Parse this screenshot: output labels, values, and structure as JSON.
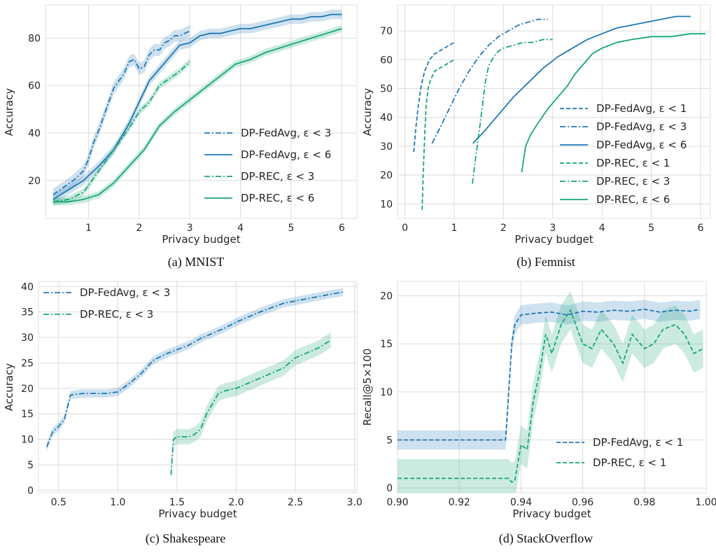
{
  "colors": {
    "blue": "#1f77b4",
    "green": "#17a673",
    "grid": "#dcdcdc",
    "spine": "#e2e2e2"
  },
  "chart_data": [
    {
      "type": "line",
      "caption": "(a) MNIST",
      "xlabel": "Privacy budget",
      "ylabel": "Accuracy",
      "xlim": [
        0.15,
        6.3
      ],
      "ylim": [
        4,
        94
      ],
      "xticks": [
        1,
        2,
        3,
        4,
        5,
        6
      ],
      "xtick_labels": [
        "1",
        "2",
        "3",
        "4",
        "5",
        "6"
      ],
      "yticks": [
        20,
        40,
        60,
        80
      ],
      "ytick_labels": [
        "20",
        "40",
        "60",
        "80"
      ],
      "grid": true,
      "legend_position": "lower-right",
      "series": [
        {
          "name": "DP-FedAvg, ε < 3",
          "color": "blue",
          "style": "dashdot",
          "band": 2.5,
          "x": [
            0.3,
            0.5,
            0.7,
            0.9,
            1.0,
            1.1,
            1.2,
            1.3,
            1.4,
            1.5,
            1.6,
            1.7,
            1.8,
            1.9,
            2.0,
            2.1,
            2.2,
            2.3,
            2.4,
            2.5,
            2.6,
            2.7,
            2.8,
            2.9,
            3.0
          ],
          "y": [
            14,
            17,
            20,
            24,
            29,
            36,
            41,
            47,
            53,
            59,
            62,
            65,
            70,
            71,
            67,
            68,
            73,
            75,
            75,
            78,
            79,
            81,
            81,
            82,
            83
          ]
        },
        {
          "name": "DP-FedAvg, ε < 6",
          "color": "blue",
          "style": "solid",
          "band": 2,
          "x": [
            0.3,
            0.6,
            0.9,
            1.2,
            1.5,
            1.8,
            2.0,
            2.2,
            2.4,
            2.6,
            2.8,
            3.0,
            3.2,
            3.4,
            3.6,
            3.8,
            4.0,
            4.2,
            4.4,
            4.6,
            4.8,
            5.0,
            5.2,
            5.4,
            5.6,
            5.8,
            6.0
          ],
          "y": [
            12,
            16,
            20,
            26,
            33,
            44,
            53,
            62,
            67,
            72,
            77,
            78,
            81,
            82,
            82,
            83,
            84,
            84,
            85,
            86,
            87,
            88,
            88,
            89,
            89,
            90,
            90
          ]
        },
        {
          "name": "DP-REC, ε < 3",
          "color": "green",
          "style": "dashdot",
          "band": 1.5,
          "x": [
            0.3,
            0.6,
            0.9,
            1.2,
            1.5,
            1.8,
            2.0,
            2.2,
            2.4,
            2.6,
            2.8,
            3.0
          ],
          "y": [
            11,
            12,
            15,
            24,
            33,
            42,
            49,
            53,
            60,
            63,
            66,
            70
          ]
        },
        {
          "name": "DP-REC, ε < 6",
          "color": "green",
          "style": "solid",
          "band": 1.5,
          "x": [
            0.3,
            0.6,
            0.9,
            1.2,
            1.5,
            1.8,
            2.1,
            2.4,
            2.7,
            3.0,
            3.3,
            3.6,
            3.9,
            4.2,
            4.5,
            4.8,
            5.1,
            5.4,
            5.7,
            6.0
          ],
          "y": [
            11,
            11,
            12,
            14,
            19,
            26,
            33,
            43,
            49,
            54,
            59,
            64,
            69,
            71,
            74,
            76,
            78,
            80,
            82,
            84
          ]
        }
      ]
    },
    {
      "type": "line",
      "caption": "(b) Femnist",
      "xlabel": "Privacy budget",
      "ylabel": "Accuracy",
      "xlim": [
        -0.15,
        6.2
      ],
      "ylim": [
        5,
        79
      ],
      "xticks": [
        0,
        1,
        2,
        3,
        4,
        5,
        6
      ],
      "xtick_labels": [
        "0",
        "1",
        "2",
        "3",
        "4",
        "5",
        "6"
      ],
      "yticks": [
        10,
        20,
        30,
        40,
        50,
        60,
        70
      ],
      "ytick_labels": [
        "10",
        "20",
        "30",
        "40",
        "50",
        "60",
        "70"
      ],
      "grid": true,
      "legend_position": "lower-right",
      "series": [
        {
          "name": "DP-FedAvg, ε < 1",
          "color": "blue",
          "style": "dashed",
          "band": 0,
          "x": [
            0.18,
            0.22,
            0.27,
            0.33,
            0.4,
            0.5,
            0.6,
            0.7,
            0.8,
            0.9,
            1.0
          ],
          "y": [
            28,
            36,
            44,
            51,
            56,
            60,
            62,
            63,
            64,
            65,
            66
          ]
        },
        {
          "name": "DP-FedAvg, ε < 3",
          "color": "blue",
          "style": "dashdot",
          "band": 0,
          "x": [
            0.55,
            0.7,
            0.9,
            1.1,
            1.3,
            1.5,
            1.7,
            1.9,
            2.1,
            2.3,
            2.5,
            2.7,
            2.9
          ],
          "y": [
            31,
            36,
            43,
            50,
            56,
            61,
            65,
            68,
            70,
            72,
            73,
            74,
            74
          ]
        },
        {
          "name": "DP-FedAvg, ε < 6",
          "color": "blue",
          "style": "solid",
          "band": 0,
          "x": [
            1.38,
            1.6,
            1.8,
            2.0,
            2.2,
            2.5,
            2.8,
            3.1,
            3.4,
            3.7,
            4.0,
            4.3,
            4.6,
            4.9,
            5.2,
            5.5,
            5.8
          ],
          "y": [
            31,
            35,
            39,
            43,
            47,
            52,
            57,
            61,
            64,
            67,
            69,
            71,
            72,
            73,
            74,
            75,
            75
          ]
        },
        {
          "name": "DP-REC, ε < 1",
          "color": "green",
          "style": "dashed",
          "band": 0,
          "x": [
            0.35,
            0.37,
            0.4,
            0.43,
            0.47,
            0.52,
            0.6,
            0.7,
            0.8,
            0.9,
            1.0
          ],
          "y": [
            8,
            20,
            33,
            44,
            50,
            53,
            56,
            57,
            58,
            59,
            60
          ]
        },
        {
          "name": "DP-REC, ε < 3",
          "color": "green",
          "style": "dashdot",
          "band": 0,
          "x": [
            1.37,
            1.45,
            1.52,
            1.58,
            1.63,
            1.7,
            1.8,
            1.9,
            2.0,
            2.2,
            2.4,
            2.6,
            2.8,
            3.0
          ],
          "y": [
            17,
            28,
            37,
            45,
            52,
            58,
            61,
            63,
            64,
            65,
            66,
            66,
            67,
            67
          ]
        },
        {
          "name": "DP-REC, ε < 6",
          "color": "green",
          "style": "solid",
          "band": 0,
          "x": [
            2.37,
            2.45,
            2.55,
            2.7,
            2.9,
            3.1,
            3.3,
            3.45,
            3.6,
            3.8,
            4.0,
            4.3,
            4.6,
            5.0,
            5.4,
            5.8,
            6.1
          ],
          "y": [
            21,
            30,
            34,
            38,
            43,
            47,
            51,
            55,
            58,
            62,
            64,
            66,
            67,
            68,
            68,
            69,
            69
          ]
        }
      ]
    },
    {
      "type": "line",
      "caption": "(c) Shakespeare",
      "xlabel": "Privacy budget",
      "ylabel": "Accuracy",
      "xlim": [
        0.33,
        3.02
      ],
      "ylim": [
        -0.5,
        41
      ],
      "xticks": [
        0.5,
        1.0,
        1.5,
        2.0,
        2.5,
        3.0
      ],
      "xtick_labels": [
        "0.5",
        "1.0",
        "1.5",
        "2.0",
        "2.5",
        "3.0"
      ],
      "yticks": [
        0,
        5,
        10,
        15,
        20,
        25,
        30,
        35,
        40
      ],
      "ytick_labels": [
        "0",
        "5",
        "10",
        "15",
        "20",
        "25",
        "30",
        "35",
        "40"
      ],
      "grid": true,
      "legend_position": "upper-left",
      "series": [
        {
          "name": "DP-FedAvg, ε < 3",
          "color": "blue",
          "style": "dashdot",
          "band": 0.8,
          "x": [
            0.4,
            0.45,
            0.5,
            0.55,
            0.6,
            0.7,
            0.8,
            0.9,
            1.0,
            1.1,
            1.2,
            1.3,
            1.4,
            1.5,
            1.6,
            1.7,
            1.8,
            1.9,
            2.0,
            2.2,
            2.4,
            2.6,
            2.8,
            2.9
          ],
          "y": [
            8.5,
            11.5,
            12.5,
            14,
            18.7,
            19,
            19,
            19,
            19.3,
            21,
            23,
            25.5,
            26.7,
            27.6,
            28.5,
            29.8,
            30.8,
            31.8,
            33,
            35,
            36.7,
            37.6,
            38.5,
            38.9
          ]
        },
        {
          "name": "DP-REC, ε < 3",
          "color": "green",
          "style": "dashdot",
          "band": 1.5,
          "x": [
            1.45,
            1.47,
            1.5,
            1.6,
            1.65,
            1.7,
            1.75,
            1.8,
            1.85,
            1.9,
            2.0,
            2.1,
            2.2,
            2.3,
            2.4,
            2.5,
            2.6,
            2.7,
            2.8
          ],
          "y": [
            3,
            10,
            10.5,
            10.5,
            11,
            12,
            15,
            17,
            19,
            19.5,
            20,
            21,
            22,
            23,
            24,
            26,
            27,
            28,
            29.5
          ]
        }
      ]
    },
    {
      "type": "line",
      "caption": "(d) StackOverflow",
      "xlabel": "Privacy budget",
      "ylabel": "Recall@5×100",
      "xlim": [
        0.9,
        1.0
      ],
      "ylim": [
        -0.5,
        21.5
      ],
      "xticks": [
        0.9,
        0.92,
        0.94,
        0.96,
        0.98,
        1.0
      ],
      "xtick_labels": [
        "0.90",
        "0.92",
        "0.94",
        "0.96",
        "0.98",
        "1.00"
      ],
      "yticks": [
        0,
        5,
        10,
        15,
        20
      ],
      "ytick_labels": [
        "0",
        "5",
        "10",
        "15",
        "20"
      ],
      "grid": true,
      "legend_position": "lower-right",
      "series": [
        {
          "name": "DP-FedAvg, ε < 1",
          "color": "blue",
          "style": "dashed",
          "band": 1,
          "x": [
            0.9,
            0.935,
            0.936,
            0.937,
            0.938,
            0.94,
            0.945,
            0.95,
            0.955,
            0.96,
            0.965,
            0.97,
            0.975,
            0.98,
            0.985,
            0.99,
            0.995,
            0.998
          ],
          "y": [
            5,
            5,
            10,
            15,
            17,
            18,
            18.2,
            18.3,
            18,
            18.4,
            18.3,
            18.5,
            18.4,
            18.6,
            18.3,
            18.5,
            18.4,
            18.6
          ]
        },
        {
          "name": "DP-REC, ε < 1",
          "color": "green",
          "style": "dashed",
          "band": 2,
          "x": [
            0.9,
            0.936,
            0.937,
            0.938,
            0.94,
            0.942,
            0.944,
            0.946,
            0.948,
            0.95,
            0.953,
            0.956,
            0.96,
            0.963,
            0.966,
            0.97,
            0.973,
            0.976,
            0.98,
            0.983,
            0.986,
            0.99,
            0.993,
            0.996,
            0.999
          ],
          "y": [
            1,
            1,
            0.6,
            0.8,
            4.5,
            4,
            9,
            12,
            16,
            14,
            17,
            18.5,
            15,
            14.5,
            16.5,
            15,
            13,
            16,
            14.5,
            15,
            16.5,
            17,
            16,
            14,
            14.5
          ]
        }
      ]
    }
  ]
}
